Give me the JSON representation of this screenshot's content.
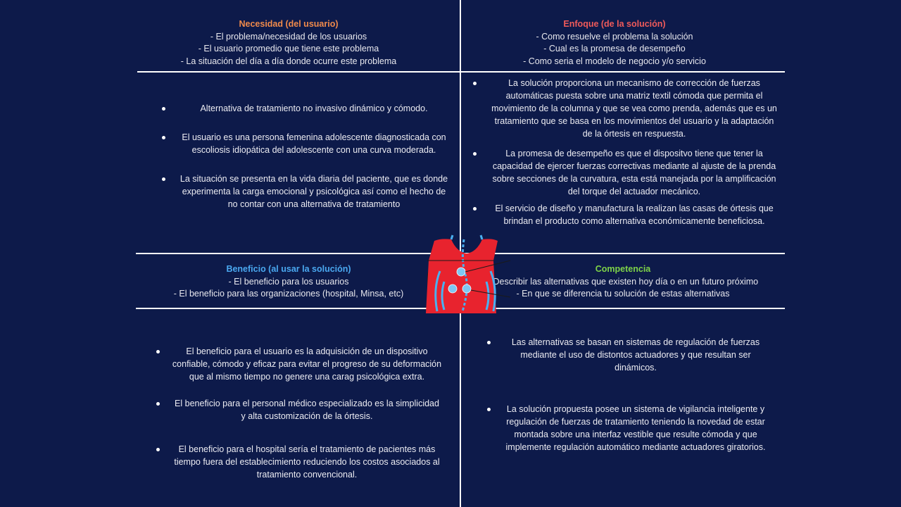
{
  "colors": {
    "background": "#0d1a4a",
    "need": "#f08a4b",
    "approach": "#ef5a5a",
    "benefit": "#4aa8f0",
    "competition": "#7ed348",
    "vest": "#e8232e",
    "vest_accent": "#4ab0f0"
  },
  "necesidad": {
    "title": "Necesidad (del usuario)",
    "lines": [
      "- El problema/necesidad de los usuarios",
      "- El usuario promedio que tiene este problema",
      "- La situación del día a día donde ocurre este problema"
    ],
    "bullets": [
      "Alternativa de tratamiento no invasivo dinámico y cómodo.",
      "El usuario es una persona femenina adolescente diagnosticada con escoliosis idiopática del adolescente con una curva moderada.",
      "La situación se presenta en la vida diaria del paciente, que es donde experimenta la carga emocional y psicológica así como el hecho de no contar con una alternativa de tratamiento"
    ]
  },
  "enfoque": {
    "title": "Enfoque (de la solución)",
    "lines": [
      "- Como resuelve el problema la solución",
      "- Cual es la promesa de desempeño",
      "- Como seria el modelo de negocio y/o servicio"
    ],
    "bullets": [
      "La solución proporciona un mecanismo de corrección de fuerzas automáticas puesta sobre una matriz textil cómoda que permita el movimiento de la columna y que se vea como prenda, además que es un tratamiento que se basa en los movimientos del usuario y la adaptación de la órtesis en respuesta.",
      "La promesa de desempeño es que el dispositvo tiene que tener la capacidad de ejercer fuerzas correctivas mediante al ajuste de la prenda sobre secciones de la curvatura, esta está manejada por la amplificación del torque del actuador mecánico.",
      "El servicio de diseño y manufactura la realizan las casas de órtesis que brindan el producto como alternativa económicamente beneficiosa."
    ]
  },
  "beneficio": {
    "title": "Beneficio (al usar la solución)",
    "lines": [
      "- El beneficio para los usuarios",
      "- El beneficio para las organizaciones (hospital, Minsa, etc)"
    ],
    "bullets": [
      "El beneficio para el usuario es la adquisición de un dispositivo confiable, cómodo y eficaz para evitar el progreso de su deformación que al mismo tiempo no genere una carag psicológica extra.",
      "El beneficio para el personal médico especializado es la simplicidad y alta customización de la órtesis.",
      "El beneficio para el hospital sería el tratamiento de pacientes más tiempo fuera del establecimiento reduciendo los costos asociados al tratamiento convencional."
    ]
  },
  "competencia": {
    "title": "Competencia",
    "lines": [
      "- Describir las alternativas que existen hoy día o en un futuro próximo",
      "- En que se diferencia tu solución de estas alternativas"
    ],
    "bullets": [
      "Las alternativas se basan en sistemas de regulación de fuerzas mediante el uso de distontos actuadores y que resultan ser dinámicos.",
      "La solución propuesta posee un sistema de vigilancia inteligente y regulación de fuerzas de tratamiento teniendo la novedad de estar montada sobre una interfaz vestible que resulte cómoda y que implemente regulación automático mediante actuadores giratorios."
    ]
  },
  "vest_icon": "back-brace-vest-icon"
}
